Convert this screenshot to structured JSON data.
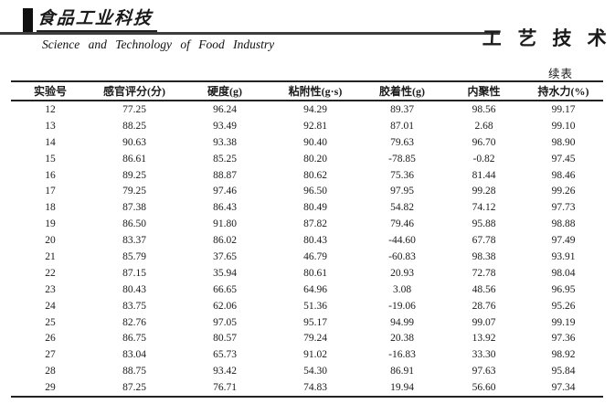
{
  "masthead": {
    "journal_cn": "食品工业科技",
    "journal_en": "Science and Technology of Food Industry",
    "section_label": "工 艺 技 术"
  },
  "table": {
    "continued_label": "续表",
    "columns": [
      "实验号",
      "感官评分(分)",
      "硬度(g)",
      "粘附性(g·s)",
      "胶着性(g)",
      "内聚性",
      "持水力(%)"
    ],
    "rows": [
      [
        "12",
        "77.25",
        "96.24",
        "94.29",
        "89.37",
        "98.56",
        "99.17"
      ],
      [
        "13",
        "88.25",
        "93.49",
        "92.81",
        "87.01",
        "2.68",
        "99.10"
      ],
      [
        "14",
        "90.63",
        "93.38",
        "90.40",
        "79.63",
        "96.70",
        "98.90"
      ],
      [
        "15",
        "86.61",
        "85.25",
        "80.20",
        "-78.85",
        "-0.82",
        "97.45"
      ],
      [
        "16",
        "89.25",
        "88.87",
        "80.62",
        "75.36",
        "81.44",
        "98.46"
      ],
      [
        "17",
        "79.25",
        "97.46",
        "96.50",
        "97.95",
        "99.28",
        "99.26"
      ],
      [
        "18",
        "87.38",
        "86.43",
        "80.49",
        "54.82",
        "74.12",
        "97.73"
      ],
      [
        "19",
        "86.50",
        "91.80",
        "87.82",
        "79.46",
        "95.88",
        "98.88"
      ],
      [
        "20",
        "83.37",
        "86.02",
        "80.43",
        "-44.60",
        "67.78",
        "97.49"
      ],
      [
        "21",
        "85.79",
        "37.65",
        "46.79",
        "-60.83",
        "98.38",
        "93.91"
      ],
      [
        "22",
        "87.15",
        "35.94",
        "80.61",
        "20.93",
        "72.78",
        "98.04"
      ],
      [
        "23",
        "80.43",
        "66.65",
        "64.96",
        "3.08",
        "48.56",
        "96.95"
      ],
      [
        "24",
        "83.75",
        "62.06",
        "51.36",
        "-19.06",
        "28.76",
        "95.26"
      ],
      [
        "25",
        "82.76",
        "97.05",
        "95.17",
        "94.99",
        "99.07",
        "99.19"
      ],
      [
        "26",
        "86.75",
        "80.57",
        "79.24",
        "20.38",
        "13.92",
        "97.36"
      ],
      [
        "27",
        "83.04",
        "65.73",
        "91.02",
        "-16.83",
        "33.30",
        "98.92"
      ],
      [
        "28",
        "88.75",
        "93.42",
        "54.30",
        "86.91",
        "97.63",
        "95.84"
      ],
      [
        "29",
        "87.25",
        "76.71",
        "74.83",
        "19.94",
        "56.60",
        "97.34"
      ]
    ]
  }
}
